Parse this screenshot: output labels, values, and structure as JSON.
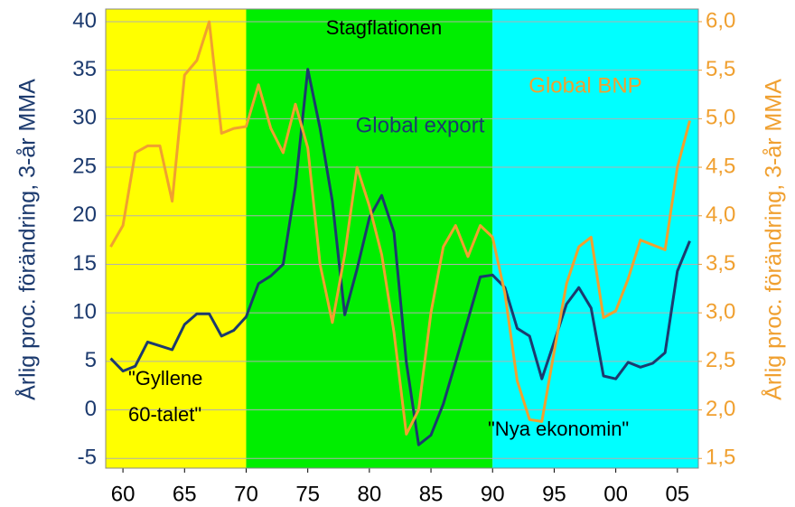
{
  "chart_data": {
    "type": "line",
    "x": [
      1959,
      1960,
      1961,
      1962,
      1963,
      1964,
      1965,
      1966,
      1967,
      1968,
      1969,
      1970,
      1971,
      1972,
      1973,
      1974,
      1975,
      1976,
      1977,
      1978,
      1979,
      1980,
      1981,
      1982,
      1983,
      1984,
      1985,
      1986,
      1987,
      1988,
      1989,
      1990,
      1991,
      1992,
      1993,
      1994,
      1995,
      1996,
      1997,
      1998,
      1999,
      2000,
      2001,
      2002,
      2003,
      2004,
      2005,
      2006
    ],
    "series": [
      {
        "name": "Global  export",
        "color": "#1c3a6e",
        "axis": "y",
        "values": [
          5.3,
          4.0,
          4.5,
          7.0,
          6.6,
          6.2,
          8.8,
          9.9,
          9.9,
          7.6,
          8.2,
          9.6,
          13.0,
          13.8,
          15.0,
          23,
          35.1,
          29,
          21.5,
          9.8,
          14.5,
          19.8,
          22.1,
          18.3,
          4.9,
          -3.6,
          -2.6,
          0.6,
          4.9,
          9.3,
          13.7,
          13.9,
          12.6,
          8.4,
          7.6,
          3.2,
          7.0,
          10.9,
          12.6,
          10.5,
          3.5,
          3.2,
          4.9,
          4.4,
          4.8,
          5.9,
          14.3,
          17.4
        ]
      },
      {
        "name": "Global  BNP",
        "color": "#f0a030",
        "axis": "y2",
        "values": [
          3.68,
          3.9,
          4.65,
          4.72,
          4.72,
          4.15,
          5.45,
          5.6,
          6.0,
          4.85,
          4.9,
          4.92,
          5.35,
          4.9,
          4.65,
          5.15,
          4.7,
          3.5,
          2.9,
          3.6,
          4.5,
          4.1,
          3.6,
          2.8,
          1.75,
          2.0,
          3.0,
          3.68,
          3.9,
          3.58,
          3.9,
          3.78,
          3.2,
          2.3,
          1.9,
          1.88,
          2.6,
          3.3,
          3.68,
          3.78,
          2.95,
          3.02,
          3.35,
          3.75,
          3.7,
          3.65,
          4.5,
          4.98
        ]
      }
    ],
    "xlim": [
      1958.6,
      2006.7
    ],
    "xticks": [
      {
        "value": 1960,
        "label": "60"
      },
      {
        "value": 1965,
        "label": "65"
      },
      {
        "value": 1970,
        "label": "70"
      },
      {
        "value": 1975,
        "label": "75"
      },
      {
        "value": 1980,
        "label": "80"
      },
      {
        "value": 1985,
        "label": "85"
      },
      {
        "value": 1990,
        "label": "90"
      },
      {
        "value": 1995,
        "label": "95"
      },
      {
        "value": 2000,
        "label": "00"
      },
      {
        "value": 2005,
        "label": "05"
      }
    ],
    "ylim": [
      -6,
      41.3
    ],
    "yticks": [
      -5,
      0,
      5,
      10,
      15,
      20,
      25,
      30,
      35,
      40
    ],
    "y2lim": [
      1.4,
      6.13
    ],
    "y2ticks": [
      {
        "value": 1.5,
        "label": "1,5"
      },
      {
        "value": 2.0,
        "label": "2,0"
      },
      {
        "value": 2.5,
        "label": "2,5"
      },
      {
        "value": 3.0,
        "label": "3,0"
      },
      {
        "value": 3.5,
        "label": "3,5"
      },
      {
        "value": 4.0,
        "label": "4,0"
      },
      {
        "value": 4.5,
        "label": "4,5"
      },
      {
        "value": 5.0,
        "label": "5,0"
      },
      {
        "value": 5.5,
        "label": "5,5"
      },
      {
        "value": 6.0,
        "label": "6,0"
      }
    ],
    "ylabel": "Årlig proc. förändring, 3-år MMA",
    "y2label": "Årlig proc. förändring, 3-år MMA",
    "grid": true,
    "bands": [
      {
        "start": 1958.6,
        "end": 1970,
        "color": "#ffff00"
      },
      {
        "start": 1970,
        "end": 1990,
        "color": "#00ee00"
      },
      {
        "start": 1990,
        "end": 2006.7,
        "color": "#00ffff"
      }
    ],
    "annotations": {
      "stagflation": "Stagflationen",
      "golden": [
        "\"Gyllene",
        "60-talet\""
      ],
      "new_economy": "\"Nya  ekonomin\""
    }
  }
}
